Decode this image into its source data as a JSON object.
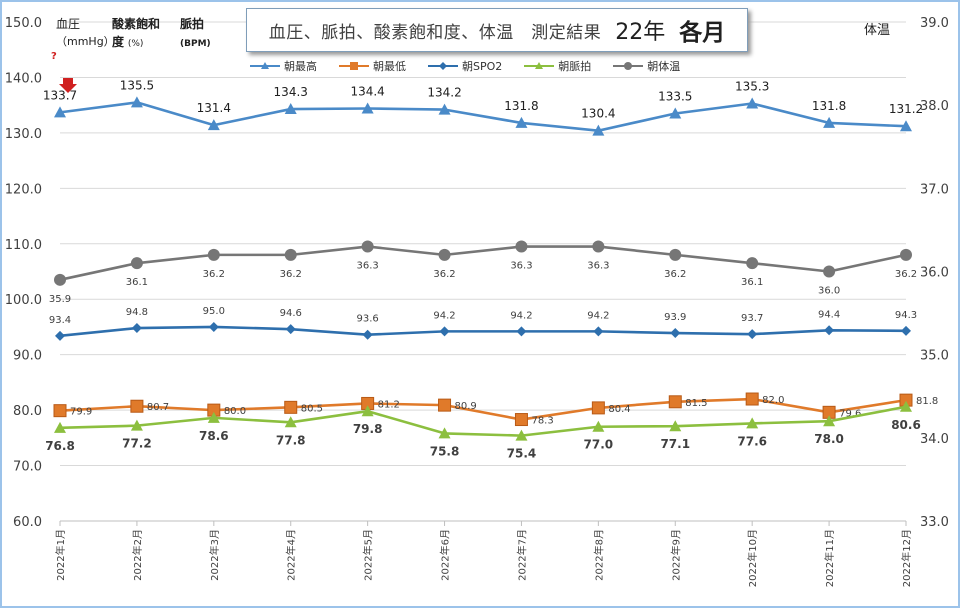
{
  "header": {
    "title_main": "血圧、脈拍、酸素飽和度、体温　測定結果",
    "title_year": "22年",
    "title_month": "各月",
    "left_axis_label_1": "血圧",
    "left_axis_label_2": "（mmHg）",
    "spo2_label_1": "酸素飽和",
    "spo2_label_2": "度",
    "spo2_unit": "(%)",
    "pulse_label": "脈拍",
    "pulse_unit": "(BPM)",
    "right_axis_label": "体温",
    "annotation": "?"
  },
  "colors": {
    "high": "#4a8ac8",
    "low": "#e07a2a",
    "spo2": "#2e6fad",
    "pulse": "#8cbf3f",
    "temp": "#767676",
    "annotation": "#d02020"
  },
  "chart_data": {
    "type": "line",
    "categories": [
      "2022年1月",
      "2022年2月",
      "2022年3月",
      "2022年4月",
      "2022年5月",
      "2022年6月",
      "2022年7月",
      "2022年8月",
      "2022年9月",
      "2022年10月",
      "2022年11月",
      "2022年12月"
    ],
    "y_left": {
      "min": 60,
      "max": 150,
      "ticks": [
        "60.0",
        "70.0",
        "80.0",
        "90.0",
        "100.0",
        "110.0",
        "120.0",
        "130.0",
        "140.0",
        "150.0"
      ]
    },
    "y_right": {
      "min": 33,
      "max": 39,
      "ticks": [
        "33.0",
        "34.0",
        "35.0",
        "36.0",
        "37.0",
        "38.0",
        "39.0"
      ]
    },
    "series": [
      {
        "name": "朝最高",
        "key": "high",
        "axis": "left",
        "marker": "triangle",
        "label_pos": "above",
        "values": [
          133.7,
          135.5,
          131.4,
          134.3,
          134.4,
          134.2,
          131.8,
          130.4,
          133.5,
          135.3,
          131.8,
          131.2
        ],
        "labels": [
          "133.7",
          "135.5",
          "131.4",
          "134.3",
          "134.4",
          "134.2",
          "131.8",
          "130.4",
          "133.5",
          "135.3",
          "131.8",
          "131.2"
        ]
      },
      {
        "name": "朝最低",
        "key": "low",
        "axis": "left",
        "marker": "square",
        "label_pos": "right",
        "values": [
          79.9,
          80.7,
          80.0,
          80.5,
          81.2,
          80.9,
          78.3,
          80.4,
          81.5,
          82.0,
          79.6,
          81.8
        ],
        "labels": [
          "79.9",
          "80.7",
          "80.0",
          "80.5",
          "81.2",
          "80.9",
          "78.3",
          "80.4",
          "81.5",
          "82.0",
          "79.6",
          "81.8"
        ]
      },
      {
        "name": "朝SPO2",
        "key": "spo2",
        "axis": "left",
        "marker": "diamond",
        "label_pos": "above",
        "values": [
          93.4,
          94.8,
          95.0,
          94.6,
          93.6,
          94.2,
          94.2,
          94.2,
          93.9,
          93.7,
          94.4,
          94.3
        ],
        "labels": [
          "93.4",
          "94.8",
          "95.0",
          "94.6",
          "93.6",
          "94.2",
          "94.2",
          "94.2",
          "93.9",
          "93.7",
          "94.4",
          "94.3"
        ]
      },
      {
        "name": "朝脈拍",
        "key": "pulse",
        "axis": "left",
        "marker": "triangle",
        "label_pos": "below",
        "values": [
          76.8,
          77.2,
          78.6,
          77.8,
          79.8,
          75.8,
          75.4,
          77.0,
          77.1,
          77.6,
          78.0,
          80.6
        ],
        "labels": [
          "76.8",
          "77.2",
          "78.6",
          "77.8",
          "79.8",
          "75.8",
          "75.4",
          "77.0",
          "77.1",
          "77.6",
          "78.0",
          "80.6"
        ]
      },
      {
        "name": "朝体温",
        "key": "temp",
        "axis": "right",
        "marker": "circle",
        "label_pos": "below",
        "values": [
          35.9,
          36.1,
          36.2,
          36.2,
          36.3,
          36.2,
          36.3,
          36.3,
          36.2,
          36.1,
          36.0,
          36.2
        ],
        "labels": [
          "35.9",
          "36.1",
          "36.2",
          "36.2",
          "36.3",
          "36.2",
          "36.3",
          "36.3",
          "36.2",
          "36.1",
          "36.0",
          "36.2"
        ]
      }
    ]
  }
}
